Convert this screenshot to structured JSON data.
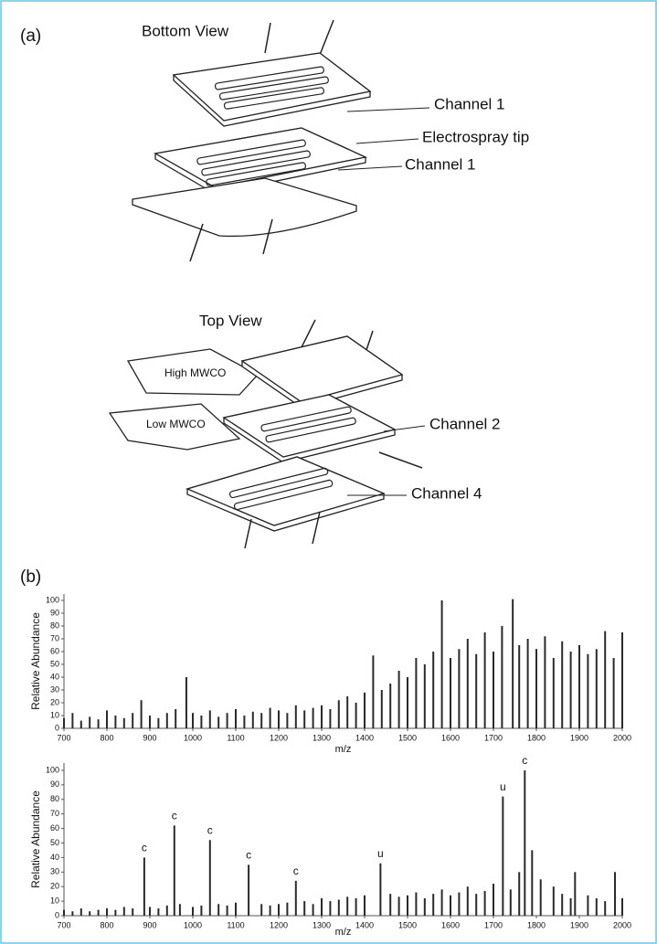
{
  "panels": {
    "a": "(a)",
    "b": "(b)"
  },
  "diagram": {
    "bottom_view": "Bottom View",
    "top_view": "Top View",
    "labels": [
      "Channel 1",
      "Electrospray tip",
      "Channel 1",
      "High MWCO",
      "Low MWCO",
      "Channel 2",
      "Channel 4"
    ]
  },
  "chart_data": [
    {
      "type": "spectrum",
      "ylabel": "Relative Abundance",
      "xlabel": "m/z",
      "color": "#2a2a2a",
      "xlim": [
        700,
        2000
      ],
      "xticks": [
        700,
        800,
        900,
        1000,
        1100,
        1200,
        1300,
        1400,
        1500,
        1600,
        1700,
        1800,
        1900,
        2000
      ],
      "ylim": [
        0,
        105
      ],
      "yticks": [
        0,
        10,
        20,
        30,
        40,
        50,
        60,
        70,
        80,
        90,
        100
      ],
      "x": [
        700,
        720,
        740,
        760,
        780,
        800,
        820,
        840,
        860,
        880,
        900,
        920,
        940,
        960,
        985,
        1000,
        1020,
        1040,
        1060,
        1080,
        1100,
        1120,
        1140,
        1160,
        1180,
        1200,
        1220,
        1240,
        1260,
        1280,
        1300,
        1320,
        1340,
        1360,
        1380,
        1400,
        1420,
        1440,
        1460,
        1480,
        1500,
        1520,
        1540,
        1560,
        1580,
        1600,
        1620,
        1640,
        1660,
        1680,
        1700,
        1720,
        1745,
        1760,
        1780,
        1800,
        1820,
        1840,
        1860,
        1880,
        1900,
        1920,
        1940,
        1960,
        1980,
        2000
      ],
      "values": [
        8,
        12,
        6,
        9,
        7,
        14,
        10,
        8,
        12,
        22,
        10,
        8,
        12,
        15,
        40,
        12,
        10,
        14,
        9,
        12,
        15,
        10,
        13,
        12,
        16,
        14,
        12,
        18,
        14,
        16,
        18,
        15,
        22,
        25,
        20,
        28,
        57,
        30,
        35,
        45,
        40,
        55,
        50,
        60,
        100,
        55,
        62,
        70,
        58,
        75,
        60,
        80,
        101,
        65,
        70,
        62,
        72,
        55,
        68,
        60,
        65,
        58,
        62,
        76,
        55,
        75
      ]
    },
    {
      "type": "spectrum",
      "ylabel": "Relative Abundance",
      "xlabel": "m/z",
      "color": "#2a2a2a",
      "xlim": [
        700,
        2000
      ],
      "xticks": [
        700,
        800,
        900,
        1000,
        1100,
        1200,
        1300,
        1400,
        1500,
        1600,
        1700,
        1800,
        1900,
        2000
      ],
      "ylim": [
        0,
        105
      ],
      "yticks": [
        0,
        10,
        20,
        30,
        40,
        50,
        60,
        70,
        80,
        90,
        100
      ],
      "x": [
        700,
        720,
        740,
        760,
        780,
        800,
        820,
        840,
        860,
        887,
        900,
        920,
        940,
        957,
        970,
        1000,
        1020,
        1040,
        1060,
        1080,
        1100,
        1130,
        1160,
        1180,
        1200,
        1220,
        1240,
        1260,
        1280,
        1300,
        1320,
        1340,
        1360,
        1380,
        1400,
        1437,
        1460,
        1480,
        1500,
        1520,
        1540,
        1560,
        1580,
        1600,
        1620,
        1640,
        1660,
        1680,
        1700,
        1722,
        1740,
        1760,
        1773,
        1790,
        1810,
        1840,
        1860,
        1880,
        1890,
        1920,
        1940,
        1960,
        1983,
        2000
      ],
      "values": [
        4,
        3,
        5,
        3,
        4,
        5,
        4,
        6,
        5,
        40,
        6,
        5,
        7,
        62,
        8,
        6,
        7,
        52,
        8,
        7,
        9,
        35,
        8,
        7,
        8,
        9,
        24,
        10,
        8,
        12,
        10,
        11,
        13,
        12,
        14,
        36,
        15,
        13,
        14,
        16,
        12,
        15,
        18,
        14,
        16,
        20,
        15,
        17,
        22,
        82,
        18,
        30,
        100,
        45,
        25,
        20,
        15,
        12,
        30,
        14,
        12,
        10,
        30,
        12
      ],
      "annotations": [
        {
          "x": 887,
          "label": "c"
        },
        {
          "x": 957,
          "label": "c"
        },
        {
          "x": 1040,
          "label": "c"
        },
        {
          "x": 1130,
          "label": "c"
        },
        {
          "x": 1240,
          "label": "c"
        },
        {
          "x": 1437,
          "label": "u"
        },
        {
          "x": 1722,
          "label": "u"
        },
        {
          "x": 1773,
          "label": "c"
        }
      ]
    }
  ]
}
